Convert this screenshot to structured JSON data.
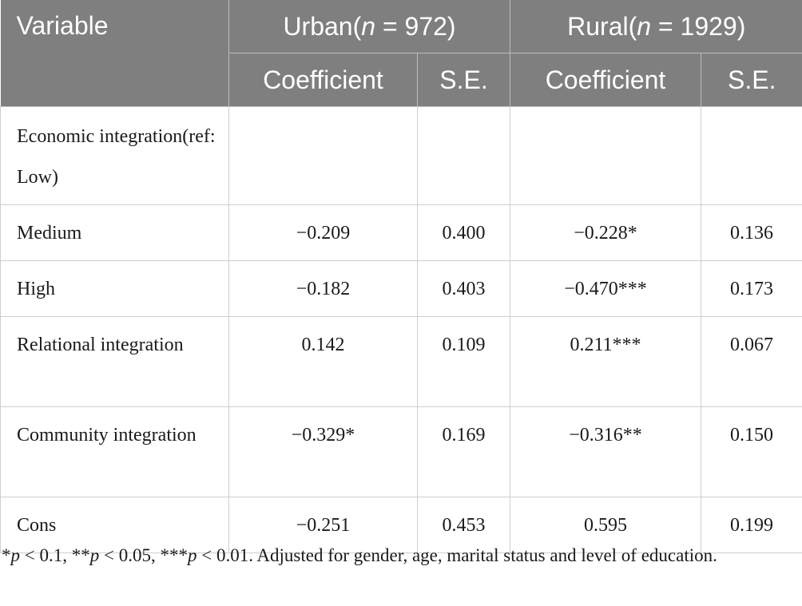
{
  "table": {
    "header": {
      "variable": "Variable",
      "urban_label": "Urban(",
      "urban_n": "n",
      "urban_count": " = 972)",
      "rural_label": "Rural(",
      "rural_n": "n",
      "rural_count": " = 1929)",
      "coef": "Coefficient",
      "se": "S.E."
    },
    "rows": [
      {
        "label": "Economic integration(ref: Low)",
        "urban_coef": "",
        "urban_se": "",
        "rural_coef": "",
        "rural_se": ""
      },
      {
        "label": "Medium",
        "urban_coef": "−0.209",
        "urban_se": "0.400",
        "rural_coef": "−0.228*",
        "rural_se": "0.136"
      },
      {
        "label": "High",
        "urban_coef": "−0.182",
        "urban_se": "0.403",
        "rural_coef": "−0.470***",
        "rural_se": "0.173"
      },
      {
        "label": "Relational integration",
        "urban_coef": "0.142",
        "urban_se": "0.109",
        "rural_coef": "0.211***",
        "rural_se": "0.067"
      },
      {
        "label": "Community integration",
        "urban_coef": "−0.329*",
        "urban_se": "0.169",
        "rural_coef": "−0.316**",
        "rural_se": "0.150"
      },
      {
        "label": "Cons",
        "urban_coef": "−0.251",
        "urban_se": "0.453",
        "rural_coef": "0.595",
        "rural_se": "0.199"
      }
    ]
  },
  "footnote": {
    "s1": "*",
    "p1": "p",
    "t1": " < 0.1, **",
    "p2": "p",
    "t2": " < 0.05, ***",
    "p3": "p",
    "t3": " < 0.01. Adjusted for gender, age, marital status and level of education."
  }
}
